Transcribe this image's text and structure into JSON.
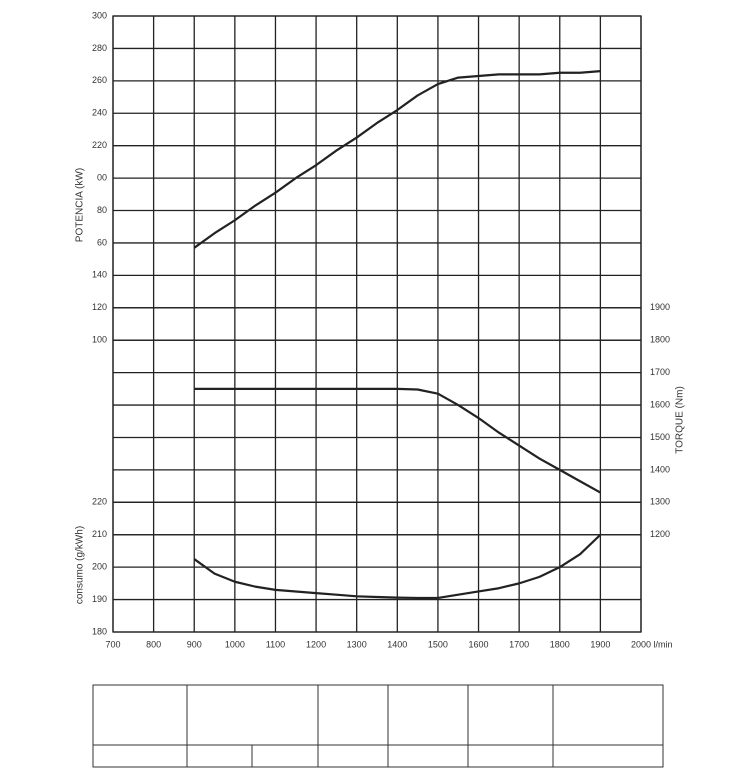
{
  "chart_data": {
    "type": "line",
    "x": [
      900,
      950,
      1000,
      1050,
      1100,
      1150,
      1200,
      1250,
      1300,
      1350,
      1400,
      1450,
      1500,
      1550,
      1600,
      1650,
      1700,
      1750,
      1800,
      1850,
      1900
    ],
    "xlim": [
      700,
      2000
    ],
    "xticks": [
      700,
      800,
      900,
      1000,
      1100,
      1200,
      1300,
      1400,
      1500,
      1600,
      1700,
      1800,
      1900,
      {
        "value": 2000,
        "label": "2000 l/min"
      }
    ],
    "y_label": "POTENCIA (kW)",
    "y2_label": "TORQUE (Nm)",
    "y3_label": "consumo (g/kWh)",
    "ylim": [
      -80,
      300
    ],
    "yticks": [
      100,
      120,
      140,
      {
        "value": 160,
        "label": "60"
      },
      {
        "value": 180,
        "label": "80"
      },
      {
        "value": 200,
        "label": "00"
      },
      220,
      240,
      260,
      280,
      300
    ],
    "y2lim": [
      900,
      2800
    ],
    "y2ticks": [
      1200,
      1300,
      1400,
      1500,
      1600,
      1700,
      1800,
      1900
    ],
    "y3lim": [
      180,
      370
    ],
    "y3ticks": [
      180,
      190,
      200,
      210,
      220
    ],
    "grid": true,
    "series": [
      {
        "name": "POTENCIA",
        "color": "#222222",
        "values": [
          157,
          166,
          174,
          183,
          191,
          200,
          208,
          217,
          225,
          234,
          242,
          251,
          258,
          262,
          263,
          264,
          264,
          264,
          265,
          265,
          266
        ]
      },
      {
        "name": "TORQUE",
        "color": "#222222",
        "axis": "y2",
        "values": [
          1650,
          1650,
          1650,
          1650,
          1650,
          1650,
          1650,
          1650,
          1650,
          1650,
          1650,
          1648,
          1635,
          1600,
          1560,
          1515,
          1475,
          1435,
          1400,
          1365,
          1330
        ]
      },
      {
        "name": "consumo",
        "color": "#222222",
        "axis": "y3",
        "values": [
          202.5,
          198,
          195.5,
          194,
          193,
          192.5,
          192,
          191.5,
          191,
          190.8,
          190.6,
          190.5,
          190.5,
          191.5,
          192.5,
          193.5,
          195,
          197,
          200,
          204,
          210
        ]
      }
    ]
  }
}
